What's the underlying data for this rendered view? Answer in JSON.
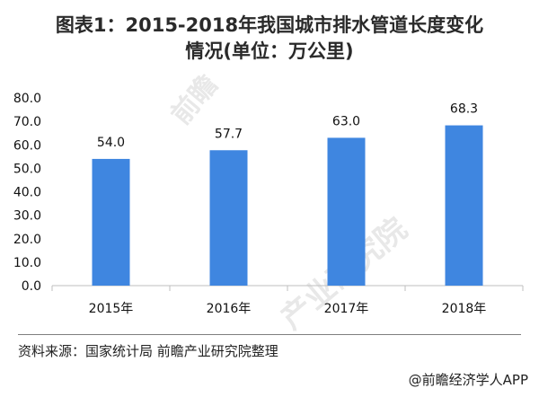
{
  "title_lines": [
    "图表1：2015-2018年我国城市排水管道长度变化",
    "情况(单位：万公里)"
  ],
  "chart_data": {
    "type": "bar",
    "categories": [
      "2015年",
      "2016年",
      "2017年",
      "2018年"
    ],
    "values": [
      54.0,
      57.7,
      63.0,
      68.3
    ],
    "ylim": [
      0,
      80
    ],
    "yticks": [
      "0.0",
      "10.0",
      "20.0",
      "30.0",
      "40.0",
      "50.0",
      "60.0",
      "70.0",
      "80.0"
    ],
    "value_labels": [
      "54.0",
      "57.7",
      "63.0",
      "68.3"
    ],
    "bar_color": "#3f86e0",
    "grid": false,
    "legend": false
  },
  "source": "资料来源：国家统计局 前瞻产业研究院整理",
  "credit": "@前瞻经济学人APP",
  "watermarks": [
    "前瞻",
    "产业研究院"
  ]
}
